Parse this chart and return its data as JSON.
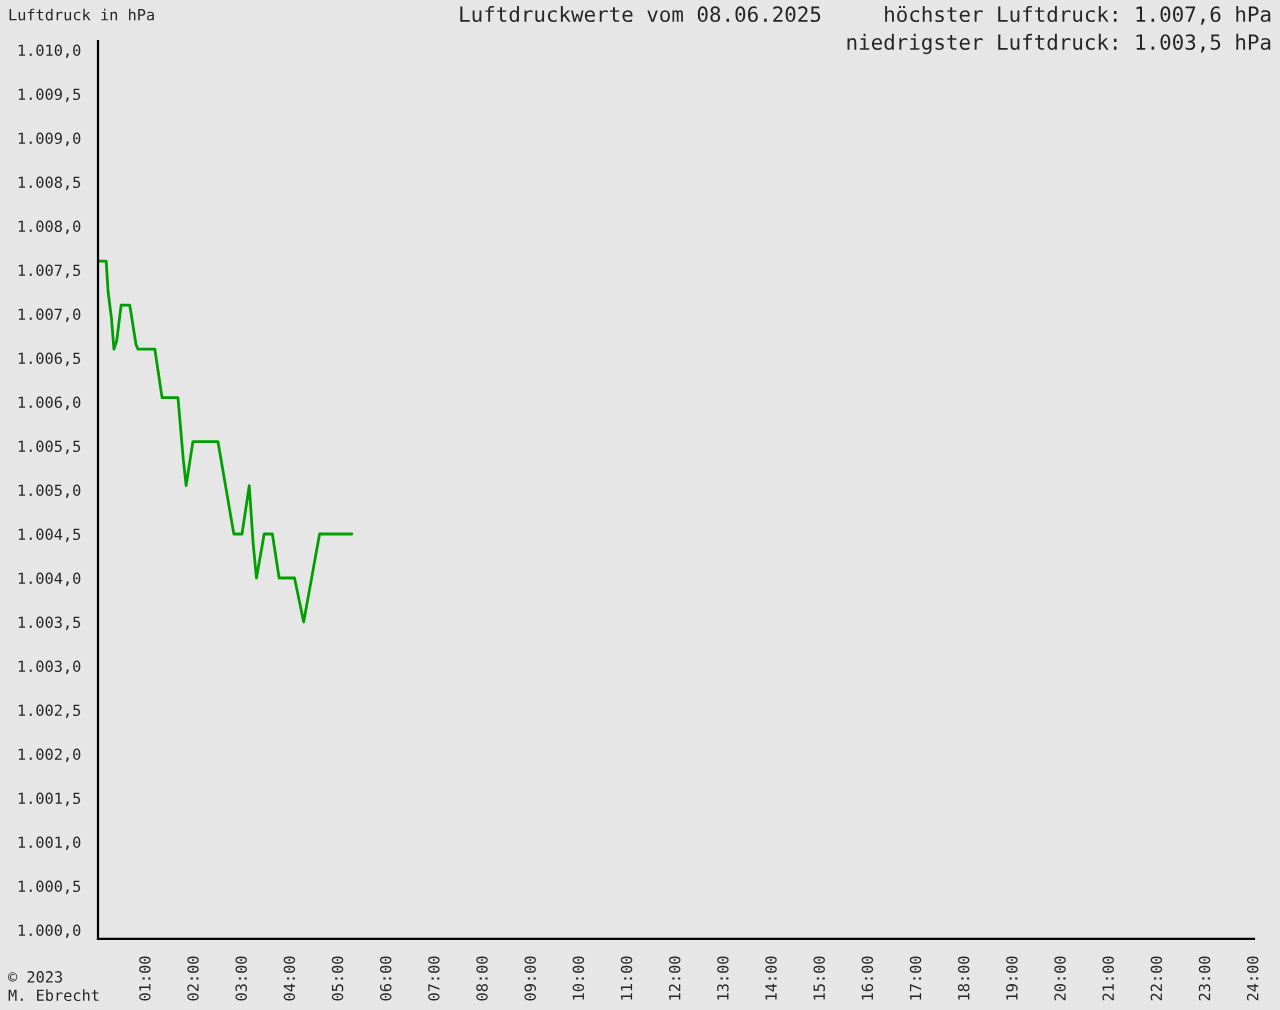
{
  "chart_data": {
    "type": "line",
    "title": "Luftdruckwerte vom 08.06.2025",
    "ylabel": "Luftdruck in hPa",
    "annotations": [
      "höchster Luftdruck: 1.007,6 hPa",
      "niedrigster Luftdruck: 1.003,5 hPa",
      "© 2023\nM. Ebrecht"
    ],
    "series": [
      {
        "color": "#00a000",
        "x": [
          0.0,
          0.17,
          0.21,
          0.28,
          0.33,
          0.39,
          0.48,
          0.66,
          0.79,
          0.83,
          1.18,
          1.33,
          1.66,
          1.77,
          1.83,
          1.97,
          2.49,
          2.82,
          2.99,
          3.14,
          3.22,
          3.29,
          3.45,
          3.62,
          3.76,
          4.08,
          4.27,
          4.6,
          5.27
        ],
        "values": [
          1007.6,
          1007.6,
          1007.25,
          1006.95,
          1006.6,
          1006.7,
          1007.1,
          1007.1,
          1006.65,
          1006.6,
          1006.6,
          1006.05,
          1006.05,
          1005.35,
          1005.05,
          1005.55,
          1005.55,
          1004.5,
          1004.5,
          1005.05,
          1004.4,
          1004.0,
          1004.5,
          1004.5,
          1004.0,
          1004.0,
          1003.5,
          1004.5,
          1004.5
        ]
      }
    ],
    "xlim": [
      0,
      24
    ],
    "xticks": [
      {
        "value": 1,
        "label": "01:00"
      },
      {
        "value": 2,
        "label": "02:00"
      },
      {
        "value": 3,
        "label": "03:00"
      },
      {
        "value": 4,
        "label": "04:00"
      },
      {
        "value": 5,
        "label": "05:00"
      },
      {
        "value": 6,
        "label": "06:00"
      },
      {
        "value": 7,
        "label": "07:00"
      },
      {
        "value": 8,
        "label": "08:00"
      },
      {
        "value": 9,
        "label": "09:00"
      },
      {
        "value": 10,
        "label": "10:00"
      },
      {
        "value": 11,
        "label": "11:00"
      },
      {
        "value": 12,
        "label": "12:00"
      },
      {
        "value": 13,
        "label": "13:00"
      },
      {
        "value": 14,
        "label": "14:00"
      },
      {
        "value": 15,
        "label": "15:00"
      },
      {
        "value": 16,
        "label": "16:00"
      },
      {
        "value": 17,
        "label": "17:00"
      },
      {
        "value": 18,
        "label": "18:00"
      },
      {
        "value": 19,
        "label": "19:00"
      },
      {
        "value": 20,
        "label": "20:00"
      },
      {
        "value": 21,
        "label": "21:00"
      },
      {
        "value": 22,
        "label": "22:00"
      },
      {
        "value": 23,
        "label": "23:00"
      },
      {
        "value": 24,
        "label": "24:00"
      }
    ],
    "ylim": [
      999.9,
      1010.1
    ],
    "yticks": [
      {
        "value": 1000.0,
        "label": "1.000,0"
      },
      {
        "value": 1000.5,
        "label": "1.000,5"
      },
      {
        "value": 1001.0,
        "label": "1.001,0"
      },
      {
        "value": 1001.5,
        "label": "1.001,5"
      },
      {
        "value": 1002.0,
        "label": "1.002,0"
      },
      {
        "value": 1002.5,
        "label": "1.002,5"
      },
      {
        "value": 1003.0,
        "label": "1.003,0"
      },
      {
        "value": 1003.5,
        "label": "1.003,5"
      },
      {
        "value": 1004.0,
        "label": "1.004,0"
      },
      {
        "value": 1004.5,
        "label": "1.004,5"
      },
      {
        "value": 1005.0,
        "label": "1.005,0"
      },
      {
        "value": 1005.5,
        "label": "1.005,5"
      },
      {
        "value": 1006.0,
        "label": "1.006,0"
      },
      {
        "value": 1006.5,
        "label": "1.006,5"
      },
      {
        "value": 1007.0,
        "label": "1.007,0"
      },
      {
        "value": 1007.5,
        "label": "1.007,5"
      },
      {
        "value": 1008.0,
        "label": "1.008,0"
      },
      {
        "value": 1008.5,
        "label": "1.008,5"
      },
      {
        "value": 1009.0,
        "label": "1.009,0"
      },
      {
        "value": 1009.5,
        "label": "1.009,5"
      },
      {
        "value": 1010.0,
        "label": "1.010,0"
      }
    ],
    "grid": false,
    "legend": false,
    "marker": "none",
    "line_style": "solid"
  }
}
